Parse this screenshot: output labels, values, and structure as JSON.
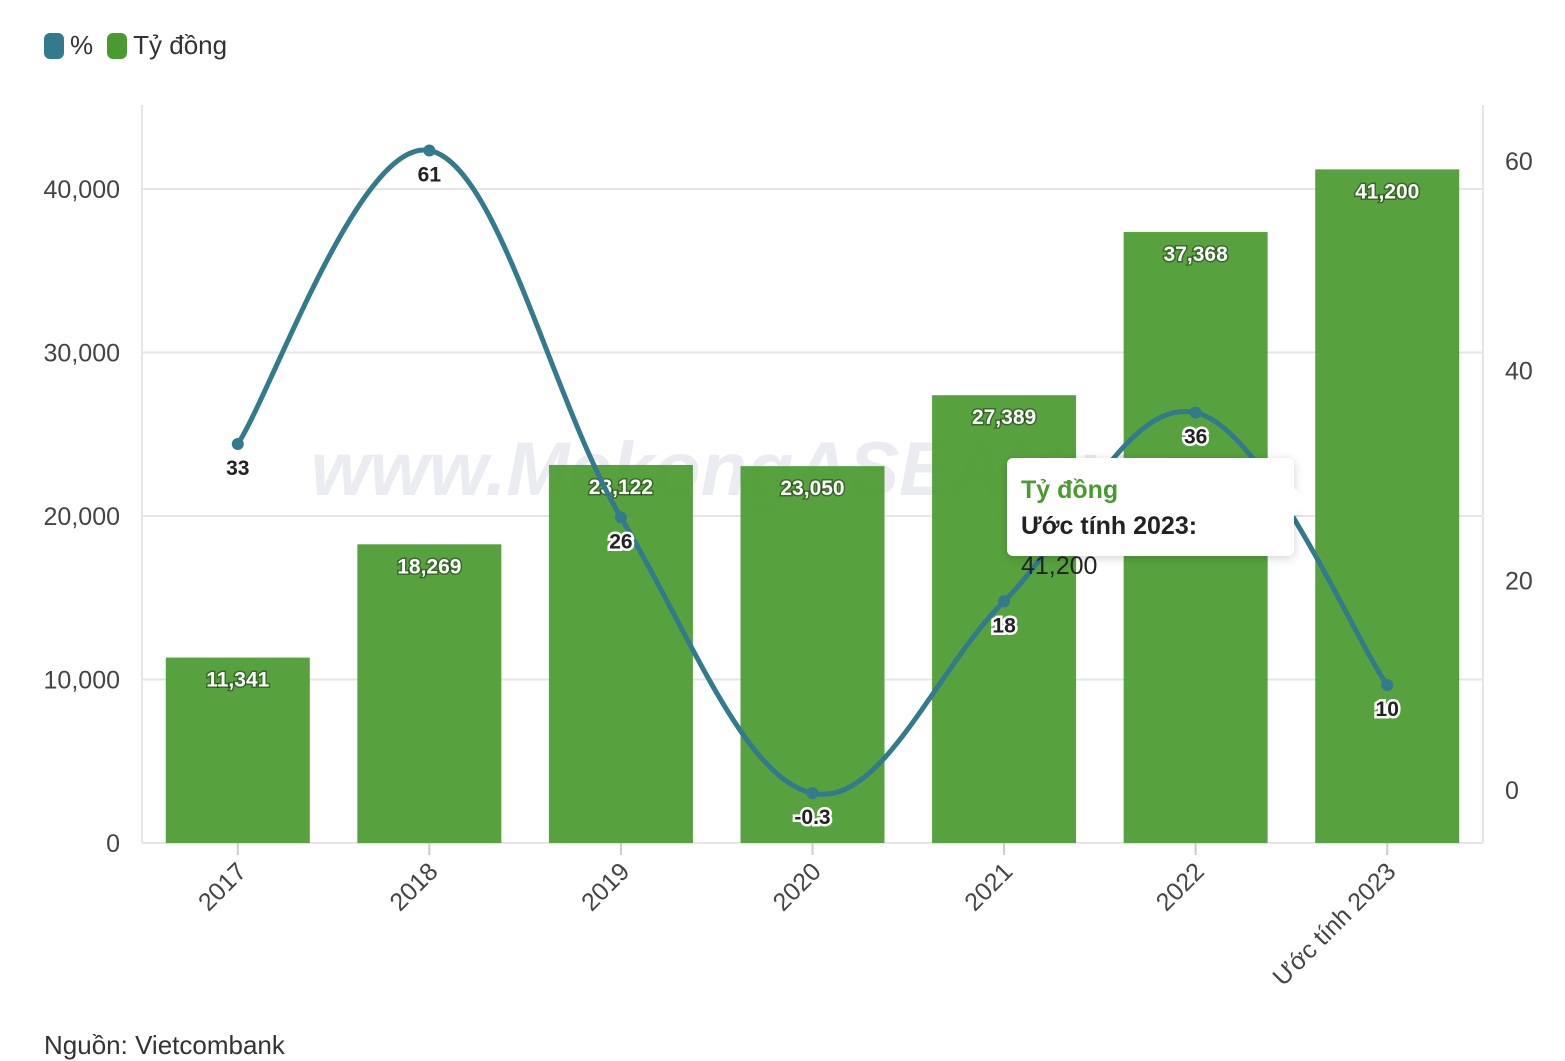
{
  "legend": [
    {
      "label": "%",
      "color": "#337a8c"
    },
    {
      "label": "Tỷ đồng",
      "color": "#4a9b2f"
    }
  ],
  "watermark": "www.MekongASEAN.vn",
  "tooltip": {
    "series": "Tỷ đồng",
    "category": "Ước tính 2023:",
    "value": "41,200"
  },
  "source": "Nguồn: Vietcombank",
  "chart_data": {
    "type": "bar+line",
    "categories": [
      "2017",
      "2018",
      "2019",
      "2020",
      "2021",
      "2022",
      "Ước tính 2023"
    ],
    "series": [
      {
        "name": "Tỷ đồng",
        "type": "bar",
        "axis": "left",
        "color": "#4a9b2f",
        "values": [
          11341,
          18269,
          23122,
          23050,
          27389,
          37368,
          41200
        ],
        "labels": [
          "11,341",
          "18,269",
          "23,122",
          "23,050",
          "27,389",
          "37,368",
          "41,200"
        ]
      },
      {
        "name": "%",
        "type": "line",
        "axis": "right",
        "color": "#337a8c",
        "values": [
          33,
          61,
          26,
          -0.3,
          18,
          36,
          10
        ],
        "labels": [
          "33",
          "61",
          "26",
          "-0.3",
          "18",
          "36",
          "10"
        ]
      }
    ],
    "y_left": {
      "ticks": [
        0,
        10000,
        20000,
        30000,
        40000
      ],
      "tick_labels": [
        "0",
        "10,000",
        "20,000",
        "30,000",
        "40,000"
      ],
      "range": [
        0,
        45000
      ]
    },
    "y_right": {
      "ticks": [
        0,
        20,
        40,
        60
      ],
      "tick_labels": [
        "0",
        "20",
        "40",
        "60"
      ],
      "range": [
        -5,
        65
      ]
    },
    "grid": true,
    "legend_position": "top-left"
  }
}
